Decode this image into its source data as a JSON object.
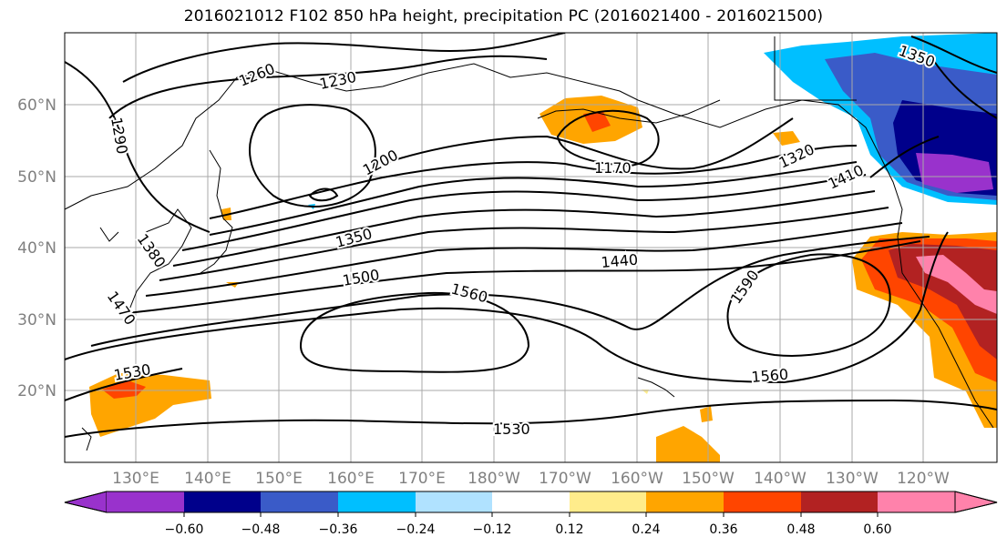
{
  "title": "2016021012 F102 850 hPa height, precipitation PC (2016021400 - 2016021500)",
  "map": {
    "lon_labels": [
      "130°E",
      "140°E",
      "150°E",
      "160°E",
      "170°E",
      "180°W",
      "170°W",
      "160°W",
      "150°W",
      "140°W",
      "130°W",
      "120°W"
    ],
    "lat_labels": [
      "20°N",
      "30°N",
      "40°N",
      "50°N",
      "60°N"
    ],
    "contour_labels": [
      "1260",
      "1230",
      "1290",
      "1200",
      "1170",
      "1350",
      "1320",
      "1410",
      "1380",
      "1470",
      "1350",
      "1500",
      "1440",
      "1560",
      "1590",
      "1530",
      "1560",
      "1530"
    ]
  },
  "colorbar": {
    "colors": [
      "#9932CC",
      "#00008B",
      "#3A5BC8",
      "#00BFFF",
      "#B0E2FF",
      "#FFFFFF",
      "#FFEC8B",
      "#FFA500",
      "#FF4500",
      "#B22222",
      "#FF82AB"
    ],
    "tick_labels": [
      "−0.60",
      "−0.48",
      "−0.36",
      "−0.24",
      "−0.12",
      "0.12",
      "0.24",
      "0.36",
      "0.48",
      "0.60"
    ]
  }
}
